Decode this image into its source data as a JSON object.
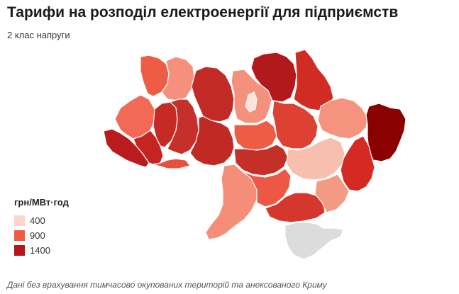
{
  "title": "Тарифи на розподіл електроенергії для підприємств",
  "subtitle": "2 клас напруги",
  "legend": {
    "title": "грн/МВт·год",
    "items": [
      {
        "label": "400",
        "color": "#fbd6cc"
      },
      {
        "label": "900",
        "color": "#ef5a45"
      },
      {
        "label": "1400",
        "color": "#b5171b"
      }
    ]
  },
  "note": "Дані без врахування тимчасово окупованих територій та анексованого Криму",
  "colors": {
    "no_data": "#dcdcdc",
    "max": "#8b0000"
  }
}
